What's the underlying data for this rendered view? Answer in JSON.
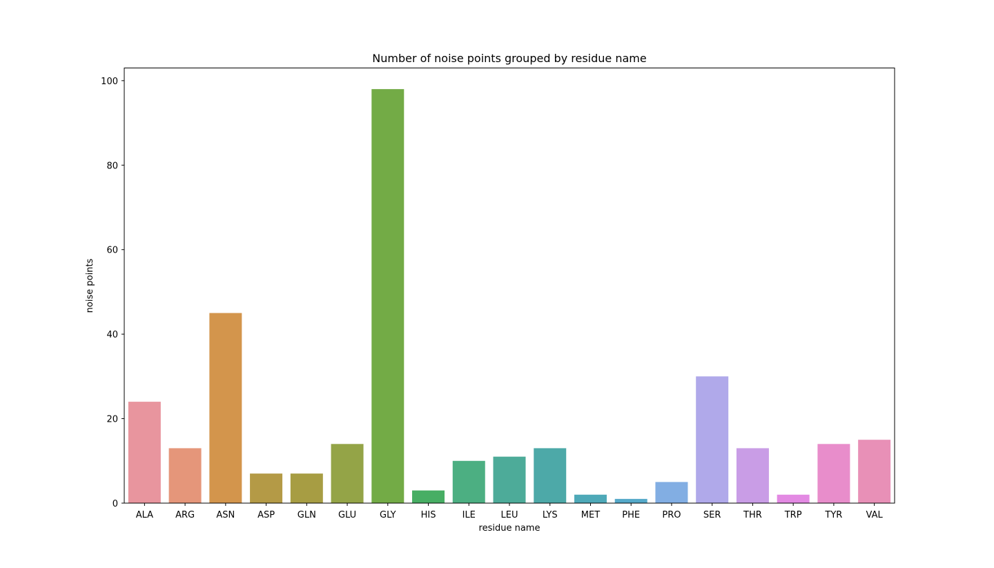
{
  "chart_data": {
    "type": "bar",
    "title": "Number of noise points grouped by residue name",
    "xlabel": "residue name",
    "ylabel": "noise points",
    "ylim": [
      0,
      103
    ],
    "yticks": [
      0,
      20,
      40,
      60,
      80,
      100
    ],
    "grid": false,
    "legend": "none",
    "categories": [
      "ALA",
      "ARG",
      "ASN",
      "ASP",
      "GLN",
      "GLU",
      "GLY",
      "HIS",
      "ILE",
      "LEU",
      "LYS",
      "MET",
      "PHE",
      "PRO",
      "SER",
      "THR",
      "TRP",
      "TYR",
      "VAL"
    ],
    "values": [
      24,
      13,
      45,
      7,
      7,
      14,
      98,
      3,
      10,
      11,
      13,
      2,
      1,
      5,
      30,
      13,
      2,
      14,
      15
    ],
    "colors": [
      "#e8959e",
      "#e5967a",
      "#d3954c",
      "#b49a46",
      "#a79d43",
      "#94a447",
      "#73ab46",
      "#47ae64",
      "#4caf82",
      "#4dab99",
      "#4da9a8",
      "#4ea9b8",
      "#55a9c9",
      "#82aee3",
      "#b0a9ea",
      "#c99de6",
      "#e38ae3",
      "#e88dcb",
      "#e890b7"
    ]
  }
}
